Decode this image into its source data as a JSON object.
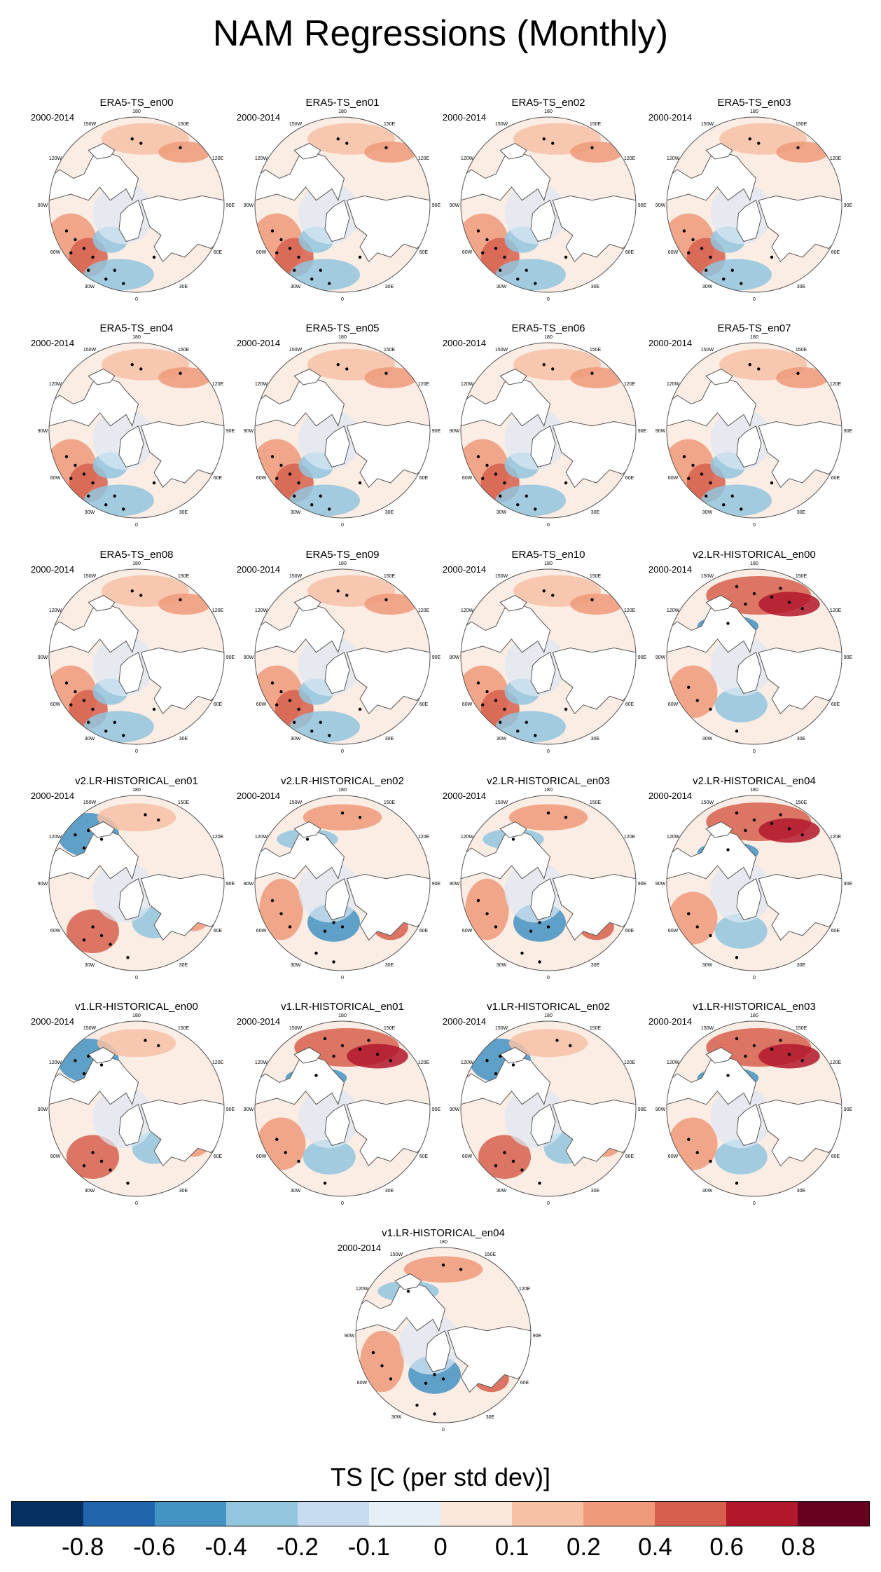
{
  "title": "NAM Regressions (Monthly)",
  "period_label": "2000-2014",
  "longitude_labels": [
    "180",
    "150E",
    "120E",
    "90E",
    "60E",
    "30E",
    "0",
    "30W",
    "60W",
    "90W",
    "120W",
    "150W"
  ],
  "panels": [
    {
      "name": "ERA5-TS_en00",
      "pattern": "era5"
    },
    {
      "name": "ERA5-TS_en01",
      "pattern": "era5"
    },
    {
      "name": "ERA5-TS_en02",
      "pattern": "era5"
    },
    {
      "name": "ERA5-TS_en03",
      "pattern": "era5"
    },
    {
      "name": "ERA5-TS_en04",
      "pattern": "era5"
    },
    {
      "name": "ERA5-TS_en05",
      "pattern": "era5"
    },
    {
      "name": "ERA5-TS_en06",
      "pattern": "era5"
    },
    {
      "name": "ERA5-TS_en07",
      "pattern": "era5"
    },
    {
      "name": "ERA5-TS_en08",
      "pattern": "era5"
    },
    {
      "name": "ERA5-TS_en09",
      "pattern": "era5"
    },
    {
      "name": "ERA5-TS_en10",
      "pattern": "era5"
    },
    {
      "name": "v2.LR-HISTORICAL_en00",
      "pattern": "model-warm-pacific"
    },
    {
      "name": "v2.LR-HISTORICAL_en01",
      "pattern": "model-cold-alaska"
    },
    {
      "name": "v2.LR-HISTORICAL_en02",
      "pattern": "model-cold-atlantic"
    },
    {
      "name": "v2.LR-HISTORICAL_en03",
      "pattern": "model-cold-atlantic"
    },
    {
      "name": "v2.LR-HISTORICAL_en04",
      "pattern": "model-warm-pacific"
    },
    {
      "name": "v1.LR-HISTORICAL_en00",
      "pattern": "model-cold-alaska"
    },
    {
      "name": "v1.LR-HISTORICAL_en01",
      "pattern": "model-warm-pacific"
    },
    {
      "name": "v1.LR-HISTORICAL_en02",
      "pattern": "model-cold-alaska"
    },
    {
      "name": "v1.LR-HISTORICAL_en03",
      "pattern": "model-warm-pacific"
    },
    {
      "name": "v1.LR-HISTORICAL_en04",
      "pattern": "model-cold-atlantic"
    }
  ],
  "colorbar": {
    "label": "TS [C (per std dev)]",
    "colors": [
      "#053061",
      "#2166ac",
      "#4393c3",
      "#92c5de",
      "#c6dbef",
      "#e6eef6",
      "#fbe6dc",
      "#f7c1a6",
      "#ef9a7a",
      "#d6604d",
      "#b2182b",
      "#67001f"
    ],
    "tick_labels": [
      "-0.8",
      "-0.6",
      "-0.4",
      "-0.2",
      "-0.1",
      "0",
      "0.1",
      "0.2",
      "0.4",
      "0.6",
      "0.8"
    ]
  },
  "style": {
    "continent_fill": "#ffffff",
    "coastline": "#555555",
    "stipple": "#000000"
  }
}
